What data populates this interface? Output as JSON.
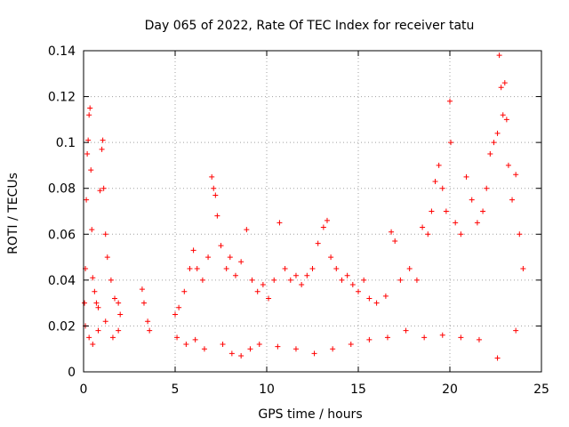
{
  "chart_data": {
    "type": "scatter",
    "title": "Day 065 of 2022, Rate Of TEC Index for receiver tatu",
    "xlabel": "GPS time / hours",
    "ylabel": "ROTI / TECUs",
    "xlim": [
      0,
      25
    ],
    "ylim": [
      0,
      0.14
    ],
    "x_ticks": [
      0,
      5,
      10,
      15,
      20,
      25
    ],
    "x_tick_labels": [
      "0",
      "5",
      "10",
      "15",
      "20",
      "25"
    ],
    "y_ticks": [
      0,
      0.02,
      0.04,
      0.06,
      0.08,
      0.1,
      0.12,
      0.14
    ],
    "y_tick_labels": [
      "0",
      "0.02",
      "0.04",
      "0.06",
      "0.08",
      "0.1",
      "0.12",
      "0.14"
    ],
    "grid": true,
    "marker": "plus",
    "color": "#ff0000",
    "series": [
      {
        "points": [
          [
            0.05,
            0.03
          ],
          [
            0.1,
            0.045
          ],
          [
            0.15,
            0.075
          ],
          [
            0.2,
            0.095
          ],
          [
            0.25,
            0.101
          ],
          [
            0.3,
            0.112
          ],
          [
            0.35,
            0.115
          ],
          [
            0.4,
            0.088
          ],
          [
            0.45,
            0.062
          ],
          [
            0.5,
            0.041
          ],
          [
            0.6,
            0.035
          ],
          [
            0.7,
            0.03
          ],
          [
            0.8,
            0.028
          ],
          [
            0.9,
            0.079
          ],
          [
            1.0,
            0.097
          ],
          [
            1.05,
            0.101
          ],
          [
            1.1,
            0.08
          ],
          [
            1.2,
            0.06
          ],
          [
            1.3,
            0.05
          ],
          [
            1.5,
            0.04
          ],
          [
            1.7,
            0.032
          ],
          [
            1.9,
            0.03
          ],
          [
            2.0,
            0.025
          ],
          [
            3.2,
            0.036
          ],
          [
            3.3,
            0.03
          ],
          [
            3.5,
            0.022
          ],
          [
            3.6,
            0.018
          ],
          [
            5.0,
            0.025
          ],
          [
            5.2,
            0.028
          ],
          [
            5.5,
            0.035
          ],
          [
            5.8,
            0.045
          ],
          [
            6.0,
            0.053
          ],
          [
            6.2,
            0.045
          ],
          [
            6.5,
            0.04
          ],
          [
            6.8,
            0.05
          ],
          [
            7.0,
            0.085
          ],
          [
            7.1,
            0.08
          ],
          [
            7.2,
            0.077
          ],
          [
            7.3,
            0.068
          ],
          [
            7.5,
            0.055
          ],
          [
            7.8,
            0.045
          ],
          [
            8.0,
            0.05
          ],
          [
            8.3,
            0.042
          ],
          [
            8.6,
            0.048
          ],
          [
            8.9,
            0.062
          ],
          [
            9.2,
            0.04
          ],
          [
            9.5,
            0.035
          ],
          [
            9.8,
            0.038
          ],
          [
            10.1,
            0.032
          ],
          [
            10.4,
            0.04
          ],
          [
            10.7,
            0.065
          ],
          [
            11.0,
            0.045
          ],
          [
            11.3,
            0.04
          ],
          [
            11.6,
            0.042
          ],
          [
            11.9,
            0.038
          ],
          [
            12.2,
            0.042
          ],
          [
            12.5,
            0.045
          ],
          [
            12.8,
            0.056
          ],
          [
            13.1,
            0.063
          ],
          [
            13.3,
            0.066
          ],
          [
            13.5,
            0.05
          ],
          [
            13.8,
            0.045
          ],
          [
            14.1,
            0.04
          ],
          [
            14.4,
            0.042
          ],
          [
            14.7,
            0.038
          ],
          [
            15.0,
            0.035
          ],
          [
            15.3,
            0.04
          ],
          [
            15.6,
            0.032
          ],
          [
            16.0,
            0.03
          ],
          [
            16.5,
            0.033
          ],
          [
            16.8,
            0.061
          ],
          [
            17.0,
            0.057
          ],
          [
            17.3,
            0.04
          ],
          [
            17.8,
            0.045
          ],
          [
            18.2,
            0.04
          ],
          [
            18.5,
            0.063
          ],
          [
            18.8,
            0.06
          ],
          [
            19.0,
            0.07
          ],
          [
            19.2,
            0.083
          ],
          [
            19.4,
            0.09
          ],
          [
            19.6,
            0.08
          ],
          [
            19.8,
            0.07
          ],
          [
            20.0,
            0.118
          ],
          [
            20.05,
            0.1
          ],
          [
            20.3,
            0.065
          ],
          [
            20.6,
            0.06
          ],
          [
            20.9,
            0.085
          ],
          [
            21.2,
            0.075
          ],
          [
            21.5,
            0.065
          ],
          [
            21.8,
            0.07
          ],
          [
            22.0,
            0.08
          ],
          [
            22.2,
            0.095
          ],
          [
            22.4,
            0.1
          ],
          [
            22.6,
            0.104
          ],
          [
            22.7,
            0.138
          ],
          [
            22.8,
            0.124
          ],
          [
            22.9,
            0.112
          ],
          [
            23.0,
            0.126
          ],
          [
            23.1,
            0.11
          ],
          [
            23.2,
            0.09
          ],
          [
            23.4,
            0.075
          ],
          [
            23.6,
            0.086
          ],
          [
            23.8,
            0.06
          ],
          [
            24.0,
            0.045
          ],
          [
            0.1,
            0.02
          ],
          [
            0.3,
            0.015
          ],
          [
            0.5,
            0.012
          ],
          [
            0.8,
            0.018
          ],
          [
            1.2,
            0.022
          ],
          [
            1.6,
            0.015
          ],
          [
            1.9,
            0.018
          ],
          [
            5.1,
            0.015
          ],
          [
            5.6,
            0.012
          ],
          [
            6.1,
            0.014
          ],
          [
            6.6,
            0.01
          ],
          [
            7.6,
            0.012
          ],
          [
            8.1,
            0.008
          ],
          [
            8.6,
            0.007
          ],
          [
            9.1,
            0.01
          ],
          [
            9.6,
            0.012
          ],
          [
            10.6,
            0.011
          ],
          [
            11.6,
            0.01
          ],
          [
            12.6,
            0.008
          ],
          [
            13.6,
            0.01
          ],
          [
            14.6,
            0.012
          ],
          [
            15.6,
            0.014
          ],
          [
            16.6,
            0.015
          ],
          [
            17.6,
            0.018
          ],
          [
            18.6,
            0.015
          ],
          [
            19.6,
            0.016
          ],
          [
            20.6,
            0.015
          ],
          [
            21.6,
            0.014
          ],
          [
            22.6,
            0.006
          ],
          [
            23.6,
            0.018
          ]
        ]
      }
    ]
  }
}
